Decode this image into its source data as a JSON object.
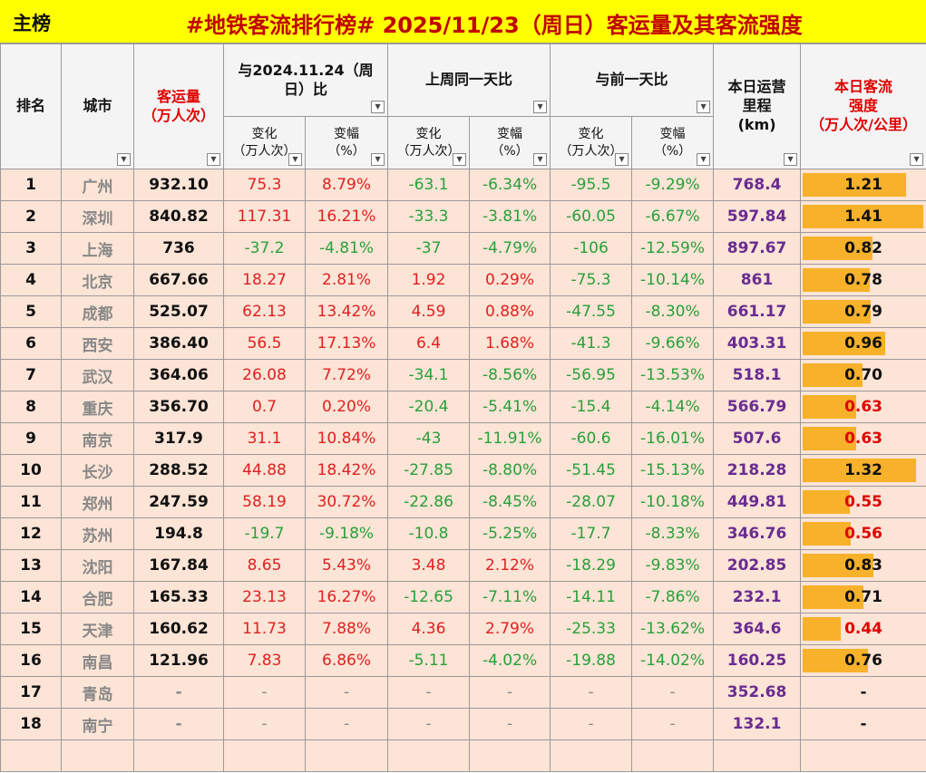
{
  "header": {
    "tab": "主榜",
    "title": "#地铁客流排行榜# 2025/11/23（周日）客运量及其客流强度"
  },
  "table": {
    "columns": [
      "排名",
      "城市",
      "客运量\n（万人次）",
      "本日运营\n里程\n(km)",
      "本日客流\n强度\n（万人次/公里）"
    ],
    "groups": [
      "与2024.11.24（周\n日）比",
      "上周同一天比",
      "与前一天比"
    ],
    "subcolumns": [
      "变化\n（万人次）",
      "变幅\n（%）",
      "变化\n（万人次）",
      "变幅\n（%）",
      "变化\n（万人次）",
      "变幅\n（%）"
    ],
    "rows": [
      [
        "1",
        "广州",
        "932.10",
        "75.3",
        "8.79%",
        "-63.1",
        "-6.34%",
        "-95.5",
        "-9.29%",
        "768.4",
        "1.21"
      ],
      [
        "2",
        "深圳",
        "840.82",
        "117.31",
        "16.21%",
        "-33.3",
        "-3.81%",
        "-60.05",
        "-6.67%",
        "597.84",
        "1.41"
      ],
      [
        "3",
        "上海",
        "736",
        "-37.2",
        "-4.81%",
        "-37",
        "-4.79%",
        "-106",
        "-12.59%",
        "897.67",
        "0.82"
      ],
      [
        "4",
        "北京",
        "667.66",
        "18.27",
        "2.81%",
        "1.92",
        "0.29%",
        "-75.3",
        "-10.14%",
        "861",
        "0.78"
      ],
      [
        "5",
        "成都",
        "525.07",
        "62.13",
        "13.42%",
        "4.59",
        "0.88%",
        "-47.55",
        "-8.30%",
        "661.17",
        "0.79"
      ],
      [
        "6",
        "西安",
        "386.40",
        "56.5",
        "17.13%",
        "6.4",
        "1.68%",
        "-41.3",
        "-9.66%",
        "403.31",
        "0.96"
      ],
      [
        "7",
        "武汉",
        "364.06",
        "26.08",
        "7.72%",
        "-34.1",
        "-8.56%",
        "-56.95",
        "-13.53%",
        "518.1",
        "0.70"
      ],
      [
        "8",
        "重庆",
        "356.70",
        "0.7",
        "0.20%",
        "-20.4",
        "-5.41%",
        "-15.4",
        "-4.14%",
        "566.79",
        "0.63"
      ],
      [
        "9",
        "南京",
        "317.9",
        "31.1",
        "10.84%",
        "-43",
        "-11.91%",
        "-60.6",
        "-16.01%",
        "507.6",
        "0.63"
      ],
      [
        "10",
        "长沙",
        "288.52",
        "44.88",
        "18.42%",
        "-27.85",
        "-8.80%",
        "-51.45",
        "-15.13%",
        "218.28",
        "1.32"
      ],
      [
        "11",
        "郑州",
        "247.59",
        "58.19",
        "30.72%",
        "-22.86",
        "-8.45%",
        "-28.07",
        "-10.18%",
        "449.81",
        "0.55"
      ],
      [
        "12",
        "苏州",
        "194.8",
        "-19.7",
        "-9.18%",
        "-10.8",
        "-5.25%",
        "-17.7",
        "-8.33%",
        "346.76",
        "0.56"
      ],
      [
        "13",
        "沈阳",
        "167.84",
        "8.65",
        "5.43%",
        "3.48",
        "2.12%",
        "-18.29",
        "-9.83%",
        "202.85",
        "0.83"
      ],
      [
        "14",
        "合肥",
        "165.33",
        "23.13",
        "16.27%",
        "-12.65",
        "-7.11%",
        "-14.11",
        "-7.86%",
        "232.1",
        "0.71"
      ],
      [
        "15",
        "天津",
        "160.62",
        "11.73",
        "7.88%",
        "4.36",
        "2.79%",
        "-25.33",
        "-13.62%",
        "364.6",
        "0.44"
      ],
      [
        "16",
        "南昌",
        "121.96",
        "7.83",
        "6.86%",
        "-5.11",
        "-4.02%",
        "-19.88",
        "-14.02%",
        "160.25",
        "0.76"
      ],
      [
        "17",
        "青岛",
        "-",
        "-",
        "-",
        "-",
        "-",
        "-",
        "-",
        "352.68",
        "-"
      ],
      [
        "18",
        "南宁",
        "-",
        "-",
        "-",
        "-",
        "-",
        "-",
        "-",
        "132.1",
        "-"
      ]
    ],
    "intensity_colors": [
      "#111",
      "#111",
      "#111",
      "#111",
      "#111",
      "#111",
      "#111",
      "#e00000",
      "#e00000",
      "#111",
      "#e00000",
      "#e00000",
      "#111",
      "#111",
      "#e00000",
      "#111",
      "#111",
      "#111"
    ],
    "bar_color": "#f7b12a"
  }
}
